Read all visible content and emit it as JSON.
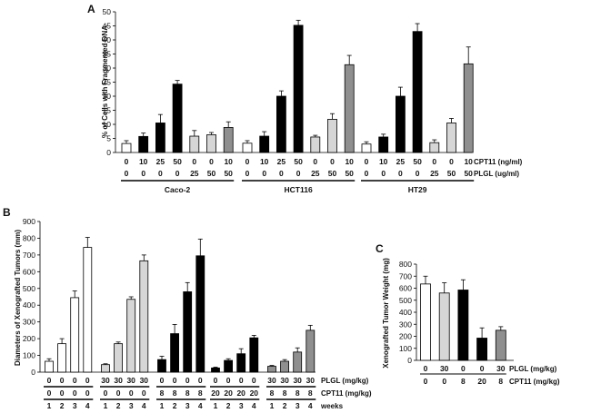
{
  "colors": {
    "white": "#ffffff",
    "light_gray": "#d6d6d6",
    "black": "#000000",
    "mid_gray": "#8f8f8f",
    "edge": "#000000"
  },
  "chart_data": [
    {
      "type": "bar",
      "panel": "A",
      "ylabel": "% of Cells with Fragmented DNA",
      "ylim": [
        0,
        50
      ],
      "yticks": [
        0,
        5,
        10,
        15,
        20,
        25,
        30,
        35,
        40,
        45,
        50
      ],
      "row_labels": [
        "CPT11 (ng/ml)",
        "PLGL (ug/ml)"
      ],
      "groups": [
        {
          "label": "Caco-2",
          "bars": [
            {
              "cpt11": "0",
              "plgl": "0",
              "value": 3.2,
              "error": 1.0,
              "color": "white"
            },
            {
              "cpt11": "10",
              "plgl": "0",
              "value": 5.7,
              "error": 1.2,
              "color": "black"
            },
            {
              "cpt11": "25",
              "plgl": "0",
              "value": 10.5,
              "error": 3.0,
              "color": "black"
            },
            {
              "cpt11": "50",
              "plgl": "0",
              "value": 24.3,
              "error": 1.3,
              "color": "black"
            },
            {
              "cpt11": "0",
              "plgl": "25",
              "value": 5.8,
              "error": 2.0,
              "color": "light_gray"
            },
            {
              "cpt11": "0",
              "plgl": "50",
              "value": 6.3,
              "error": 0.8,
              "color": "light_gray"
            },
            {
              "cpt11": "10",
              "plgl": "50",
              "value": 8.9,
              "error": 2.0,
              "color": "mid_gray"
            }
          ]
        },
        {
          "label": "HCT116",
          "bars": [
            {
              "cpt11": "0",
              "plgl": "0",
              "value": 3.3,
              "error": 0.9,
              "color": "white"
            },
            {
              "cpt11": "10",
              "plgl": "0",
              "value": 5.8,
              "error": 1.6,
              "color": "black"
            },
            {
              "cpt11": "25",
              "plgl": "0",
              "value": 20.0,
              "error": 1.9,
              "color": "black"
            },
            {
              "cpt11": "50",
              "plgl": "0",
              "value": 45.2,
              "error": 1.8,
              "color": "black"
            },
            {
              "cpt11": "0",
              "plgl": "25",
              "value": 5.5,
              "error": 0.6,
              "color": "light_gray"
            },
            {
              "cpt11": "0",
              "plgl": "50",
              "value": 11.8,
              "error": 2.0,
              "color": "light_gray"
            },
            {
              "cpt11": "10",
              "plgl": "50",
              "value": 31.2,
              "error": 3.3,
              "color": "mid_gray"
            }
          ]
        },
        {
          "label": "HT29",
          "bars": [
            {
              "cpt11": "0",
              "plgl": "0",
              "value": 3.0,
              "error": 0.8,
              "color": "white"
            },
            {
              "cpt11": "10",
              "plgl": "0",
              "value": 5.5,
              "error": 1.0,
              "color": "black"
            },
            {
              "cpt11": "25",
              "plgl": "0",
              "value": 20.0,
              "error": 3.2,
              "color": "black"
            },
            {
              "cpt11": "50",
              "plgl": "0",
              "value": 43.0,
              "error": 2.8,
              "color": "black"
            },
            {
              "cpt11": "0",
              "plgl": "25",
              "value": 3.5,
              "error": 1.0,
              "color": "light_gray"
            },
            {
              "cpt11": "0",
              "plgl": "50",
              "value": 10.5,
              "error": 1.6,
              "color": "light_gray"
            },
            {
              "cpt11": "10",
              "plgl": "50",
              "value": 31.5,
              "error": 6.0,
              "color": "mid_gray"
            }
          ]
        }
      ]
    },
    {
      "type": "bar",
      "panel": "B",
      "ylabel": "Diameters of Xenografted Tumors (mm)",
      "ylim": [
        0,
        900
      ],
      "yticks": [
        0,
        100,
        200,
        300,
        400,
        500,
        600,
        700,
        800,
        900
      ],
      "row_labels": [
        "PLGL (mg/kg)",
        "CPT11 (mg/kg)",
        "weeks"
      ],
      "groups": [
        {
          "color": "white",
          "plgl": "0",
          "cpt11": "0",
          "weeks": [
            "1",
            "2",
            "3",
            "4"
          ],
          "values": [
            65,
            170,
            445,
            745
          ],
          "errors": [
            15,
            30,
            40,
            60
          ]
        },
        {
          "color": "light_gray",
          "plgl": "30",
          "cpt11": "0",
          "weeks": [
            "1",
            "2",
            "3",
            "4"
          ],
          "values": [
            45,
            170,
            435,
            665
          ],
          "errors": [
            5,
            10,
            15,
            35
          ]
        },
        {
          "color": "black",
          "plgl": "0",
          "cpt11": "8",
          "weeks": [
            "1",
            "2",
            "3",
            "4"
          ],
          "values": [
            75,
            230,
            480,
            695
          ],
          "errors": [
            20,
            55,
            55,
            100
          ]
        },
        {
          "color": "black",
          "plgl": "0",
          "cpt11": "20",
          "weeks": [
            "1",
            "2",
            "3",
            "4"
          ],
          "values": [
            25,
            70,
            110,
            205
          ],
          "errors": [
            5,
            10,
            30,
            15
          ]
        },
        {
          "color": "mid_gray",
          "plgl": "30",
          "cpt11": "8",
          "weeks": [
            "1",
            "2",
            "3",
            "4"
          ],
          "values": [
            35,
            65,
            120,
            250
          ],
          "errors": [
            5,
            10,
            25,
            30
          ]
        }
      ]
    },
    {
      "type": "bar",
      "panel": "C",
      "ylabel": "Xenografted Tumor Weight (mg)",
      "ylim": [
        0,
        800
      ],
      "yticks": [
        0,
        100,
        200,
        300,
        400,
        500,
        600,
        700,
        800
      ],
      "row_labels": [
        "PLGL (mg/kg)",
        "CPT11 (mg/kg)"
      ],
      "bars": [
        {
          "plgl": "0",
          "cpt11": "0",
          "value": 635,
          "error": 65,
          "color": "white"
        },
        {
          "plgl": "30",
          "cpt11": "0",
          "value": 560,
          "error": 85,
          "color": "light_gray"
        },
        {
          "plgl": "0",
          "cpt11": "8",
          "value": 585,
          "error": 85,
          "color": "black"
        },
        {
          "plgl": "0",
          "cpt11": "20",
          "value": 185,
          "error": 85,
          "color": "black"
        },
        {
          "plgl": "30",
          "cpt11": "8",
          "value": 250,
          "error": 30,
          "color": "mid_gray"
        }
      ]
    }
  ]
}
